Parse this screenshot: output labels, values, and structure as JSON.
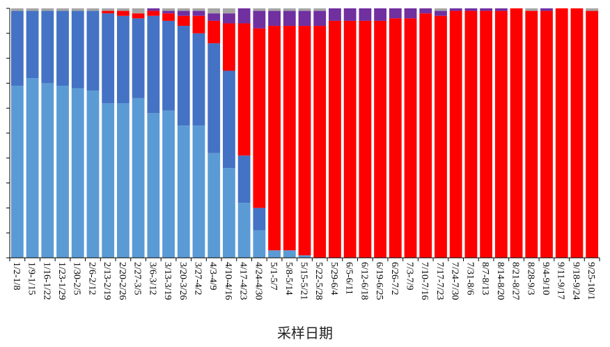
{
  "chart_data": {
    "type": "bar",
    "stacked": true,
    "percent": true,
    "title": "",
    "xlabel": "采样日期",
    "ylabel": "",
    "ylim": [
      0,
      100
    ],
    "y_tick_labels_visible": false,
    "y_tick_count": 10,
    "grid": false,
    "legend": "none",
    "categories": [
      "1/2-1/8",
      "1/9-1/15",
      "1/16-1/22",
      "1/23-1/29",
      "1/30-2/5",
      "2/6-2/12",
      "2/13-2/19",
      "2/20-2/26",
      "2/27-3/5",
      "3/6-3/12",
      "3/13-3/19",
      "3/20-3/26",
      "3/27-4/2",
      "4/3-4/9",
      "4/10-4/16",
      "4/17-4/23",
      "4/24-4/30",
      "5/1-5/7",
      "5/8-5/14",
      "5/15-5/21",
      "5/22-5/28",
      "5/29-6/4",
      "6/5-6/11",
      "6/12-6/18",
      "6/19-6/25",
      "6/26-7/2",
      "7/3-7/9",
      "7/10-7/16",
      "7/17-7/23",
      "7/24-7/30",
      "7/31-8/6",
      "8/7-8/13",
      "8/14-8/20",
      "8/21-8/27",
      "8/28-9/3",
      "9/4-9/10",
      "9/11-9/17",
      "9/18-9/24",
      "9/25-10/1"
    ],
    "series": [
      {
        "color": "#5b9bd5",
        "values": [
          69,
          72,
          70,
          69,
          68,
          67,
          62,
          62,
          64,
          58,
          59,
          53,
          53,
          42,
          36,
          22,
          11,
          3,
          3,
          1,
          0,
          0,
          0,
          0,
          0,
          0,
          0,
          0,
          0,
          0,
          0,
          0,
          0,
          0,
          0,
          0,
          0,
          0,
          0
        ]
      },
      {
        "color": "#4472c4",
        "values": [
          30,
          27,
          29,
          30,
          31,
          32,
          36,
          35,
          32,
          39,
          36,
          40,
          37,
          44,
          39,
          19,
          9,
          0,
          0,
          0,
          0,
          0,
          0,
          0,
          0,
          0,
          0,
          0,
          0,
          0,
          0,
          0,
          0,
          0,
          0,
          0,
          0,
          0,
          0
        ]
      },
      {
        "color": "#ff0000",
        "values": [
          0,
          0,
          0,
          0,
          0,
          0,
          1,
          2,
          2,
          2,
          3,
          4,
          7,
          9,
          19,
          53,
          72,
          90,
          90,
          92,
          93,
          95,
          95,
          95,
          95,
          96,
          96,
          98,
          97,
          99,
          99,
          99,
          99,
          100,
          99,
          99,
          100,
          100,
          99
        ]
      },
      {
        "color": "#7030a0",
        "values": [
          0,
          0,
          0,
          0,
          0,
          0,
          0,
          0,
          0,
          1,
          1,
          2,
          2,
          3,
          4,
          6,
          7,
          6,
          6,
          6,
          6,
          5,
          5,
          5,
          5,
          4,
          4,
          2,
          2,
          1,
          1,
          1,
          1,
          0,
          0,
          1,
          0,
          0,
          0
        ]
      },
      {
        "color": "#a5a5a5",
        "values": [
          1,
          1,
          1,
          1,
          1,
          1,
          1,
          1,
          2,
          0,
          1,
          1,
          1,
          2,
          2,
          0,
          1,
          1,
          1,
          1,
          1,
          0,
          0,
          0,
          0,
          0,
          0,
          0,
          1,
          0,
          0,
          0,
          0,
          0,
          1,
          0,
          0,
          0,
          1
        ]
      }
    ]
  }
}
